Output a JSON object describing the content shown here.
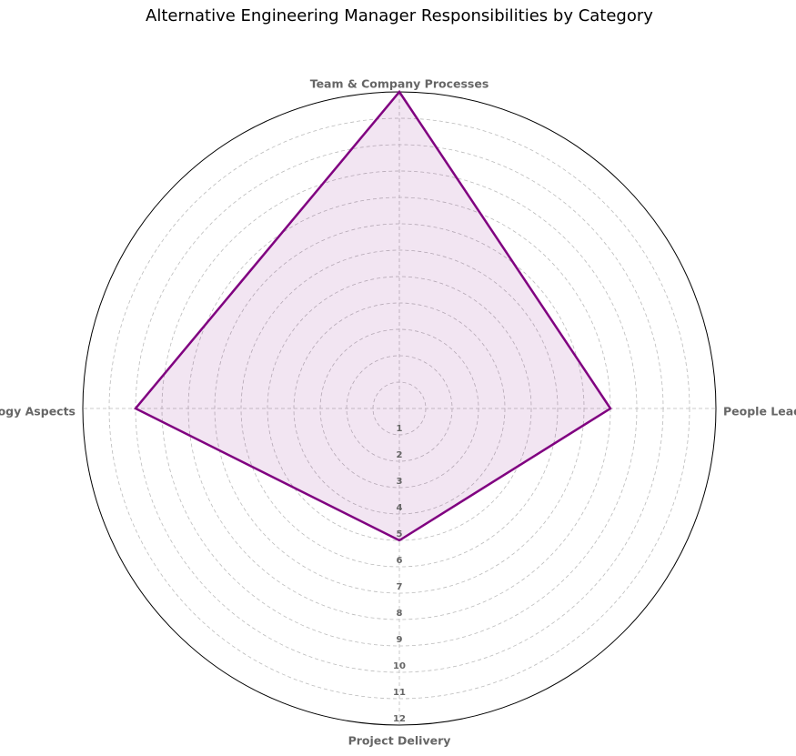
{
  "chart_data": {
    "type": "radar",
    "title": "Alternative Engineering Manager Responsibilities by Category",
    "categories": [
      "Team & Company Processes",
      "People Leadership",
      "Project Delivery",
      "Technology Aspects"
    ],
    "values": [
      12,
      8,
      5,
      10
    ],
    "color": "#800080",
    "ylim": [
      0,
      12
    ],
    "yticks": [
      1,
      2,
      3,
      4,
      5,
      6,
      7,
      8,
      9,
      10,
      11,
      12
    ],
    "grid": true
  }
}
